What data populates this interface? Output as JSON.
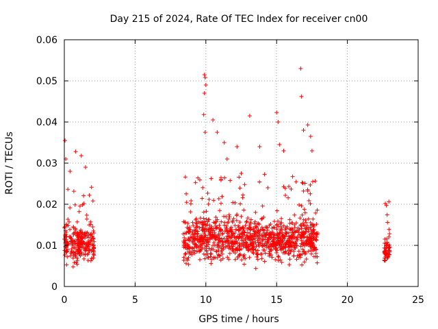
{
  "chart_data": {
    "type": "scatter",
    "title": "Day 215 of 2024, Rate Of TEC Index for receiver cn00",
    "xlabel": "GPS time / hours",
    "ylabel": "ROTI / TECUs",
    "xlim": [
      0,
      25
    ],
    "ylim": [
      0,
      0.06
    ],
    "xticks": [
      "0",
      "5",
      "10",
      "15",
      "20",
      "25"
    ],
    "yticks": [
      "0",
      "0.01",
      "0.02",
      "0.03",
      "0.04",
      "0.05",
      "0.06"
    ],
    "xtick_values": [
      0,
      5,
      10,
      15,
      20,
      25
    ],
    "ytick_values": [
      0,
      0.01,
      0.02,
      0.03,
      0.04,
      0.05,
      0.06
    ],
    "grid": true,
    "marker": "+",
    "color": "#ff0000",
    "clusters": [
      {
        "name": "segment-1",
        "x_range": [
          0.0,
          2.1
        ],
        "y_median": 0.0105,
        "y_spread": 0.0035
      },
      {
        "name": "segment-2",
        "x_range": [
          8.4,
          17.9
        ],
        "y_median": 0.0115,
        "y_spread": 0.004
      },
      {
        "name": "segment-3",
        "x_range": [
          22.6,
          23.0
        ],
        "y_median": 0.009,
        "y_spread": 0.003
      }
    ],
    "series": [
      {
        "name": "ROTI",
        "outliers": [
          {
            "x": 0.05,
            "y": 0.0355
          },
          {
            "x": 0.1,
            "y": 0.031
          },
          {
            "x": 0.4,
            "y": 0.028
          },
          {
            "x": 0.8,
            "y": 0.0328
          },
          {
            "x": 1.2,
            "y": 0.0318
          },
          {
            "x": 1.5,
            "y": 0.029
          },
          {
            "x": 9.9,
            "y": 0.0515
          },
          {
            "x": 9.95,
            "y": 0.0508
          },
          {
            "x": 10.0,
            "y": 0.049
          },
          {
            "x": 9.9,
            "y": 0.047
          },
          {
            "x": 9.85,
            "y": 0.0418
          },
          {
            "x": 9.95,
            "y": 0.0375
          },
          {
            "x": 10.5,
            "y": 0.0405
          },
          {
            "x": 10.8,
            "y": 0.0375
          },
          {
            "x": 11.3,
            "y": 0.035
          },
          {
            "x": 11.5,
            "y": 0.031
          },
          {
            "x": 13.1,
            "y": 0.0415
          },
          {
            "x": 12.2,
            "y": 0.034
          },
          {
            "x": 13.8,
            "y": 0.034
          },
          {
            "x": 15.0,
            "y": 0.0423
          },
          {
            "x": 15.1,
            "y": 0.04
          },
          {
            "x": 15.2,
            "y": 0.0345
          },
          {
            "x": 16.7,
            "y": 0.053
          },
          {
            "x": 16.75,
            "y": 0.0462
          },
          {
            "x": 17.2,
            "y": 0.0393
          },
          {
            "x": 16.9,
            "y": 0.038
          },
          {
            "x": 17.4,
            "y": 0.0365
          },
          {
            "x": 17.5,
            "y": 0.033
          },
          {
            "x": 15.5,
            "y": 0.033
          },
          {
            "x": 12.5,
            "y": 0.0275
          }
        ]
      }
    ]
  }
}
